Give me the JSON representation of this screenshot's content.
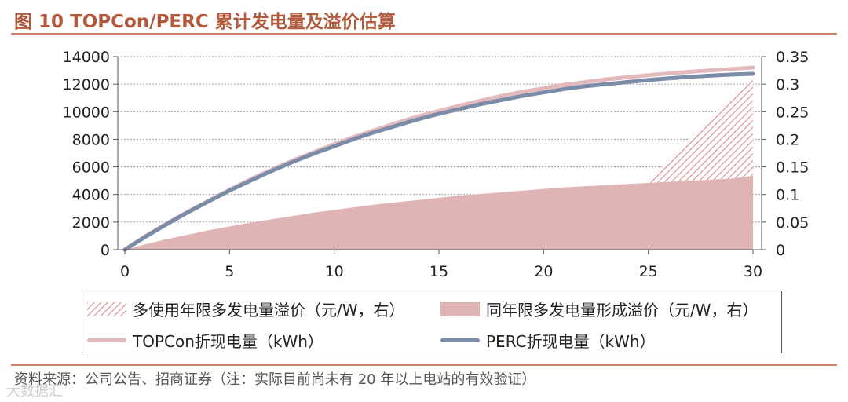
{
  "figure": {
    "title": "图 10 TOPCon/PERC 累计发电量及溢价估算",
    "source": "资料来源：公司公告、招商证券（注：实际目前尚未有 20 年以上电站的有效验证）",
    "watermark": "大数据汇"
  },
  "legend": {
    "hatch": "多使用年限多发电量溢价（元/W，右）",
    "solid": "同年限多发电量形成溢价（元/W，右）",
    "topcon": "TOPCon折现电量（kWh）",
    "perc": "PERC折现电量（kWh）"
  },
  "colors": {
    "topcon_line": "#e3b9bc",
    "perc_line": "#7b8ca8",
    "solid_area": "#e0b4b4",
    "hatch": "#e08a8a",
    "grid": "#999999"
  },
  "chart_data": {
    "type": "line",
    "x": [
      0,
      1,
      2,
      3,
      4,
      5,
      6,
      7,
      8,
      9,
      10,
      11,
      12,
      13,
      14,
      15,
      16,
      17,
      18,
      19,
      20,
      21,
      22,
      23,
      24,
      25,
      26,
      27,
      28,
      29,
      30
    ],
    "xlim": [
      0,
      30
    ],
    "xticks": [
      "0",
      "5",
      "10",
      "15",
      "20",
      "25",
      "30"
    ],
    "ylim": [
      0,
      14000
    ],
    "yticks": [
      "0",
      "2000",
      "4000",
      "6000",
      "8000",
      "10000",
      "12000",
      "14000"
    ],
    "y2lim": [
      0,
      0.35
    ],
    "y2ticks": [
      "0",
      "0.05",
      "0.1",
      "0.15",
      "0.2",
      "0.25",
      "0.3",
      "0.35"
    ],
    "grid": "horizontal dashed",
    "legend_position": "bottom",
    "series": [
      {
        "name": "TOPCon折现电量（kWh）",
        "axis": "left",
        "values": [
          0,
          1000,
          1900,
          2750,
          3550,
          4350,
          5100,
          5800,
          6450,
          7050,
          7650,
          8200,
          8700,
          9200,
          9650,
          10050,
          10450,
          10800,
          11150,
          11450,
          11700,
          11950,
          12150,
          12350,
          12500,
          12650,
          12780,
          12900,
          13000,
          13100,
          13200
        ]
      },
      {
        "name": "PERC折现电量（kWh）",
        "axis": "left",
        "values": [
          0,
          950,
          1850,
          2700,
          3500,
          4280,
          5000,
          5700,
          6350,
          6950,
          7500,
          8050,
          8550,
          9000,
          9450,
          9850,
          10200,
          10550,
          10850,
          11150,
          11400,
          11650,
          11850,
          12000,
          12150,
          12300,
          12420,
          12530,
          12620,
          12700,
          12750
        ]
      },
      {
        "name": "同年限多发电量形成溢价（元/W，右）",
        "axis": "right",
        "values": [
          0,
          0.01,
          0.019,
          0.027,
          0.035,
          0.042,
          0.049,
          0.055,
          0.061,
          0.067,
          0.072,
          0.077,
          0.082,
          0.086,
          0.09,
          0.094,
          0.098,
          0.101,
          0.104,
          0.107,
          0.11,
          0.113,
          0.115,
          0.117,
          0.119,
          0.121,
          0.123,
          0.125,
          0.127,
          0.129,
          0.134
        ]
      },
      {
        "name": "多使用年限多发电量溢价（元/W，右）",
        "axis": "right",
        "x": [
          25,
          26,
          27,
          28,
          29,
          30
        ],
        "values": [
          0.124,
          0.163,
          0.201,
          0.239,
          0.275,
          0.31
        ]
      }
    ]
  }
}
